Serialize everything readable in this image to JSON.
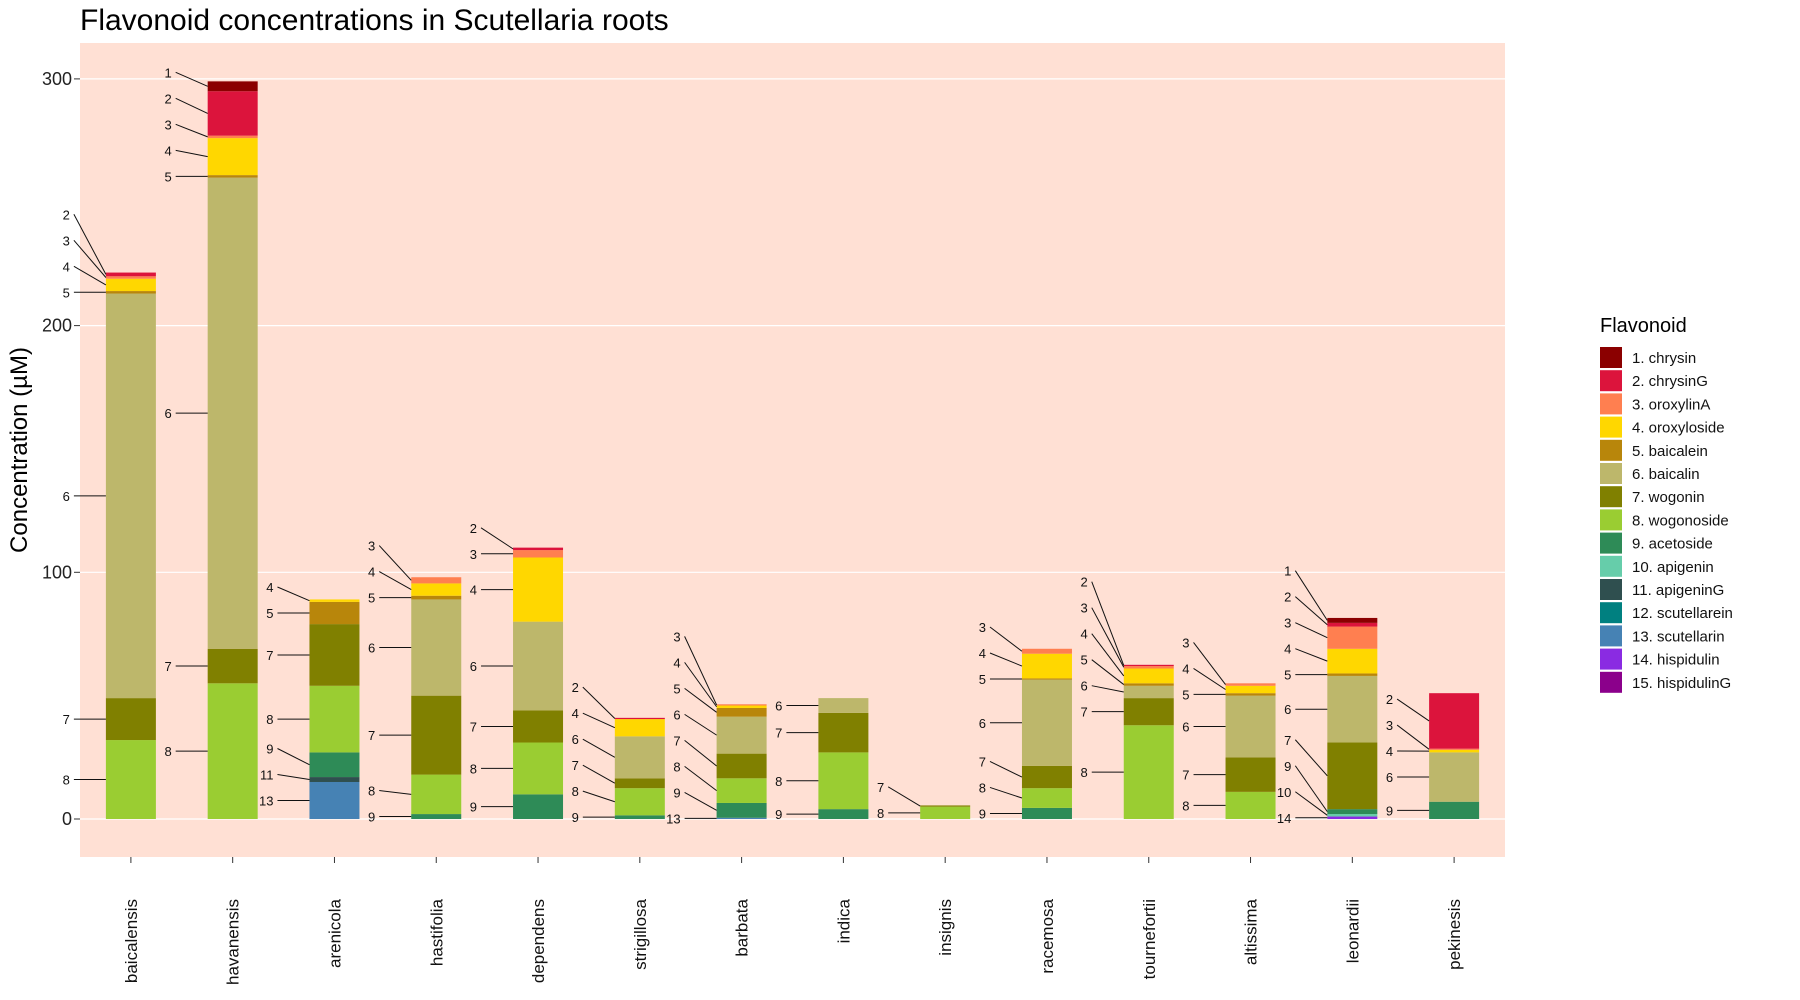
{
  "chart_data": {
    "type": "bar",
    "stacked": true,
    "title": "Flavonoid concentrations in Scutellaria roots",
    "xlabel": "",
    "ylabel": "Concentration (µM)",
    "ylim": [
      -15,
      315
    ],
    "yticks": [
      0,
      100,
      200,
      300
    ],
    "grid": true,
    "legend": {
      "title": "Flavonoid",
      "placement": "right",
      "entries": [
        {
          "id": 1,
          "label": "1. chrysin",
          "color": "#8B0000"
        },
        {
          "id": 2,
          "label": "2. chrysinG",
          "color": "#DC143C"
        },
        {
          "id": 3,
          "label": "3. oroxylinA",
          "color": "#FF7F50"
        },
        {
          "id": 4,
          "label": "4. oroxyloside",
          "color": "#FFD700"
        },
        {
          "id": 5,
          "label": "5. baicalein",
          "color": "#B8860B"
        },
        {
          "id": 6,
          "label": "6. baicalin",
          "color": "#BDB76B"
        },
        {
          "id": 7,
          "label": "7. wogonin",
          "color": "#808000"
        },
        {
          "id": 8,
          "label": "8. wogonoside",
          "color": "#9ACD32"
        },
        {
          "id": 9,
          "label": "9. acetoside",
          "color": "#2E8B57"
        },
        {
          "id": 10,
          "label": "10. apigenin",
          "color": "#66CDAA"
        },
        {
          "id": 11,
          "label": "11. apigeninG",
          "color": "#2F4F4F"
        },
        {
          "id": 12,
          "label": "12. scutellarein",
          "color": "#008080"
        },
        {
          "id": 13,
          "label": "13. scutellarin",
          "color": "#4682B4"
        },
        {
          "id": 14,
          "label": "14. hispidulin",
          "color": "#8A2BE2"
        },
        {
          "id": 15,
          "label": "15. hispidulinG",
          "color": "#8B008B"
        }
      ]
    },
    "categories": [
      "baicalensis",
      "havanensis",
      "arenicola",
      "hastifolia",
      "dependens",
      "strigillosa",
      "barbata",
      "indica",
      "insignis",
      "racemosa",
      "tournefortii",
      "altissima",
      "leonardii",
      "pekinesis"
    ],
    "stacks": [
      {
        "name": "baicalensis",
        "segments": [
          {
            "id": 8,
            "value": 32
          },
          {
            "id": 7,
            "value": 17
          },
          {
            "id": 6,
            "value": 164
          },
          {
            "id": 5,
            "value": 1
          },
          {
            "id": 4,
            "value": 5
          },
          {
            "id": 3,
            "value": 1
          },
          {
            "id": 2,
            "value": 1.5
          }
        ]
      },
      {
        "name": "havanensis",
        "segments": [
          {
            "id": 8,
            "value": 55
          },
          {
            "id": 7,
            "value": 14
          },
          {
            "id": 6,
            "value": 191
          },
          {
            "id": 5,
            "value": 1
          },
          {
            "id": 4,
            "value": 15
          },
          {
            "id": 3,
            "value": 1
          },
          {
            "id": 2,
            "value": 18
          },
          {
            "id": 1,
            "value": 4
          }
        ]
      },
      {
        "name": "arenicola",
        "segments": [
          {
            "id": 13,
            "value": 15
          },
          {
            "id": 11,
            "value": 2
          },
          {
            "id": 9,
            "value": 10
          },
          {
            "id": 8,
            "value": 27
          },
          {
            "id": 7,
            "value": 25
          },
          {
            "id": 5,
            "value": 9
          },
          {
            "id": 4,
            "value": 1
          }
        ]
      },
      {
        "name": "hastifolia",
        "segments": [
          {
            "id": 9,
            "value": 2
          },
          {
            "id": 8,
            "value": 16
          },
          {
            "id": 7,
            "value": 32
          },
          {
            "id": 6,
            "value": 39
          },
          {
            "id": 5,
            "value": 1.5
          },
          {
            "id": 4,
            "value": 5
          },
          {
            "id": 3,
            "value": 2.5
          }
        ]
      },
      {
        "name": "dependens",
        "segments": [
          {
            "id": 9,
            "value": 10
          },
          {
            "id": 8,
            "value": 21
          },
          {
            "id": 7,
            "value": 13
          },
          {
            "id": 6,
            "value": 36
          },
          {
            "id": 4,
            "value": 26
          },
          {
            "id": 3,
            "value": 3
          },
          {
            "id": 2,
            "value": 1
          }
        ]
      },
      {
        "name": "strigillosa",
        "segments": [
          {
            "id": 9,
            "value": 1.5
          },
          {
            "id": 8,
            "value": 11
          },
          {
            "id": 7,
            "value": 4
          },
          {
            "id": 6,
            "value": 17
          },
          {
            "id": 4,
            "value": 7
          },
          {
            "id": 2,
            "value": 0.5
          }
        ]
      },
      {
        "name": "barbata",
        "segments": [
          {
            "id": 13,
            "value": 0.5
          },
          {
            "id": 9,
            "value": 6
          },
          {
            "id": 8,
            "value": 10
          },
          {
            "id": 7,
            "value": 10
          },
          {
            "id": 6,
            "value": 15
          },
          {
            "id": 5,
            "value": 3.5
          },
          {
            "id": 4,
            "value": 1
          },
          {
            "id": 3,
            "value": 0.5
          }
        ]
      },
      {
        "name": "indica",
        "segments": [
          {
            "id": 9,
            "value": 4
          },
          {
            "id": 8,
            "value": 23
          },
          {
            "id": 7,
            "value": 16
          },
          {
            "id": 6,
            "value": 6
          }
        ]
      },
      {
        "name": "insignis",
        "segments": [
          {
            "id": 8,
            "value": 5
          },
          {
            "id": 7,
            "value": 0.5
          }
        ]
      },
      {
        "name": "racemosa",
        "segments": [
          {
            "id": 9,
            "value": 4.5
          },
          {
            "id": 8,
            "value": 8
          },
          {
            "id": 7,
            "value": 9
          },
          {
            "id": 6,
            "value": 35
          },
          {
            "id": 5,
            "value": 0.5
          },
          {
            "id": 4,
            "value": 10
          },
          {
            "id": 3,
            "value": 2
          }
        ]
      },
      {
        "name": "tournefortii",
        "segments": [
          {
            "id": 8,
            "value": 38
          },
          {
            "id": 7,
            "value": 11
          },
          {
            "id": 6,
            "value": 5
          },
          {
            "id": 5,
            "value": 1
          },
          {
            "id": 4,
            "value": 6
          },
          {
            "id": 3,
            "value": 1
          },
          {
            "id": 2,
            "value": 0.5
          }
        ]
      },
      {
        "name": "altissima",
        "segments": [
          {
            "id": 8,
            "value": 11
          },
          {
            "id": 7,
            "value": 14
          },
          {
            "id": 6,
            "value": 25
          },
          {
            "id": 5,
            "value": 1
          },
          {
            "id": 4,
            "value": 3
          },
          {
            "id": 3,
            "value": 1
          }
        ]
      },
      {
        "name": "leonardii",
        "segments": [
          {
            "id": 14,
            "value": 1
          },
          {
            "id": 10,
            "value": 1
          },
          {
            "id": 9,
            "value": 2
          },
          {
            "id": 7,
            "value": 27
          },
          {
            "id": 6,
            "value": 27
          },
          {
            "id": 5,
            "value": 1
          },
          {
            "id": 4,
            "value": 10
          },
          {
            "id": 3,
            "value": 9
          },
          {
            "id": 2,
            "value": 1.5
          },
          {
            "id": 1,
            "value": 2
          }
        ]
      },
      {
        "name": "pekinesis",
        "segments": [
          {
            "id": 9,
            "value": 7
          },
          {
            "id": 6,
            "value": 20
          },
          {
            "id": 4,
            "value": 1
          },
          {
            "id": 3,
            "value": 0.5
          },
          {
            "id": 2,
            "value": 22.5
          }
        ]
      }
    ]
  }
}
